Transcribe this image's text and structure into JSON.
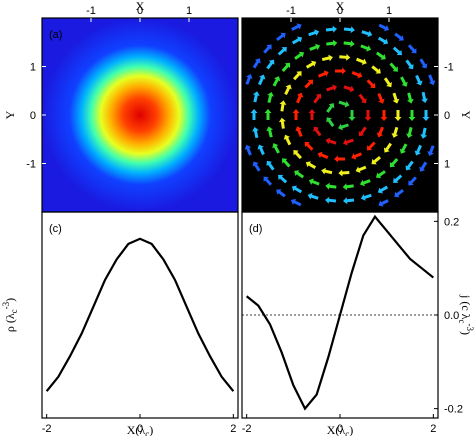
{
  "chart_data": [
    {
      "type": "heatmap",
      "panel_label": "(a)",
      "xlabel": {
        "main": "X"
      },
      "ylabel": {
        "main": "Y"
      },
      "xlim": [
        -2,
        2
      ],
      "ylim": [
        -2,
        2
      ],
      "xticks": [
        -1,
        0,
        1
      ],
      "yticks": [
        -1,
        0,
        1
      ]
    },
    {
      "type": "vector",
      "panel_label": "(b)",
      "xlabel": {
        "main": "X"
      },
      "ylabel": {
        "main": "Y"
      },
      "xlim": [
        -2,
        2
      ],
      "ylim": [
        2,
        -2
      ],
      "xticks": [
        -1,
        0,
        1
      ],
      "yticks": [
        -1,
        0,
        1
      ]
    },
    {
      "type": "line",
      "panel_label": "(c)",
      "xlabel": {
        "main": "X(λ",
        "sub": "c",
        "tail": ")"
      },
      "ylabel": {
        "main": "ρ (λ",
        "sub": "c",
        "sup": "-3",
        "tail": ")"
      },
      "xlim": [
        -2.1,
        2.1
      ],
      "ylim": [
        0,
        1
      ],
      "xticks": [
        -2,
        0,
        2
      ],
      "color": "#000000",
      "x": [
        -2,
        -1.75,
        -1.5,
        -1.25,
        -1,
        -0.75,
        -0.5,
        -0.25,
        0,
        0.25,
        0.5,
        0.75,
        1,
        1.25,
        1.5,
        1.75,
        2
      ],
      "values": [
        0.13,
        0.2,
        0.3,
        0.41,
        0.54,
        0.67,
        0.77,
        0.845,
        0.87,
        0.845,
        0.77,
        0.67,
        0.54,
        0.41,
        0.3,
        0.2,
        0.13
      ]
    },
    {
      "type": "line",
      "panel_label": "(d)",
      "xlabel": {
        "main": "X(λ",
        "sub": "c",
        "tail": ")"
      },
      "ylabel": {
        "main": "j (c λ",
        "sub": "c",
        "sup": "-3",
        "tail": ")"
      },
      "xlim": [
        -2.1,
        2.1
      ],
      "ylim": [
        -0.22,
        0.22
      ],
      "xticks": [
        -2,
        0,
        2
      ],
      "yticks": [
        -0.2,
        {
          "value": 0,
          "label": "0.0"
        },
        0.2
      ],
      "color": "#000000",
      "x": [
        -2,
        -1.75,
        -1.5,
        -1.25,
        -1,
        -0.75,
        -0.5,
        -0.25,
        0,
        0.25,
        0.5,
        0.75,
        1,
        1.25,
        1.5,
        1.75,
        2
      ],
      "values": [
        0.04,
        0.02,
        -0.02,
        -0.08,
        -0.15,
        -0.2,
        -0.17,
        -0.09,
        0,
        0.09,
        0.17,
        0.21,
        0.18,
        0.15,
        0.12,
        0.1,
        0.08
      ]
    }
  ]
}
